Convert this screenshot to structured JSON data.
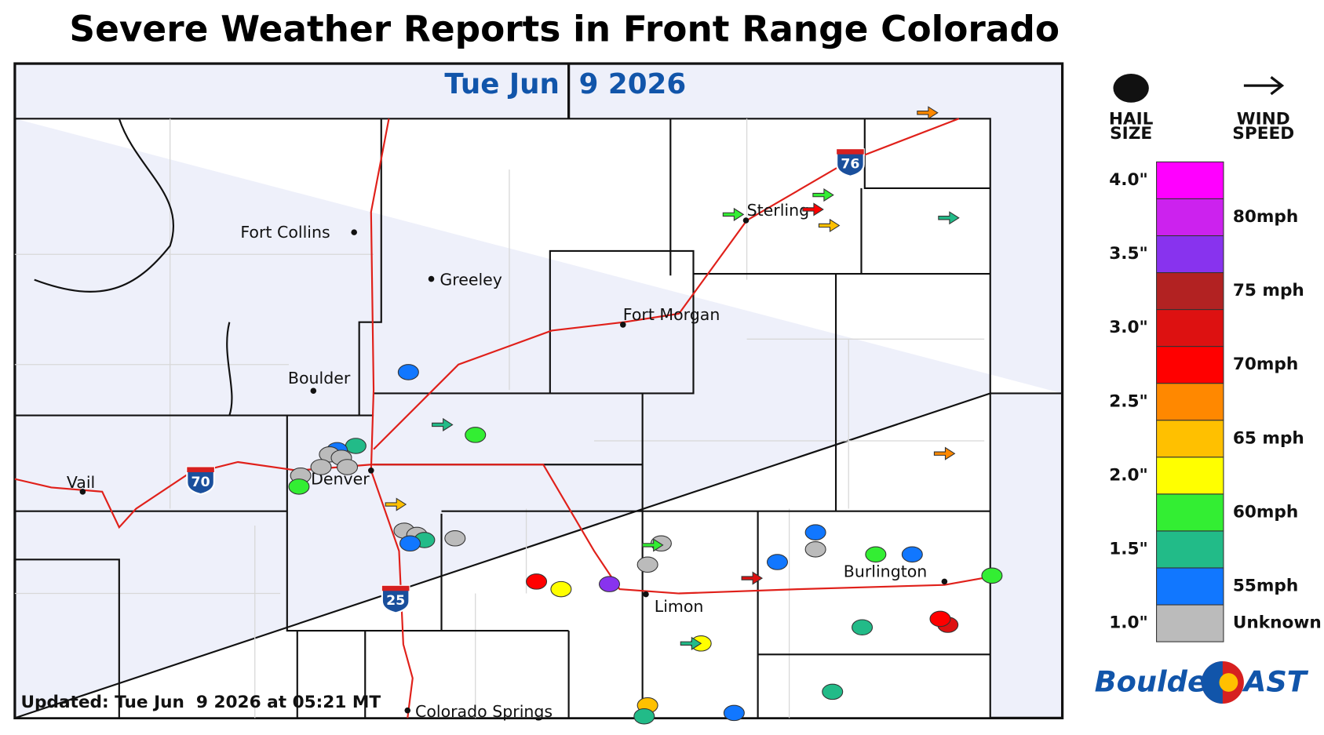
{
  "title": "Severe Weather Reports in Front Range Colorado",
  "map": {
    "date": "Tue Jun  9 2026",
    "updated": "Updated: Tue Jun  9 2026 at 05:21 MT",
    "cities": [
      "Fort Collins",
      "Greeley",
      "Fort Morgan",
      "Sterling",
      "Boulder",
      "Denver",
      "Vail",
      "Limon",
      "Burlington",
      "Colorado Springs"
    ],
    "highways": [
      "76",
      "70",
      "25"
    ]
  },
  "legend": {
    "hail_heading": [
      "HAIL",
      "SIZE"
    ],
    "wind_heading": [
      "WIND",
      "SPEED"
    ],
    "colors": [
      "#ff00ff",
      "#cc22ee",
      "#8833ee",
      "#b22222",
      "#dd1111",
      "#ff0000",
      "#ff8800",
      "#ffc000",
      "#ffff00",
      "#33ee33",
      "#22bb88",
      "#1177ff",
      "#bbbbbb"
    ],
    "hail_labels": [
      "4.0\"",
      "3.5\"",
      "3.0\"",
      "2.5\"",
      "2.0\"",
      "1.5\"",
      "1.0\""
    ],
    "wind_labels": [
      "80mph",
      "75 mph",
      "70mph",
      "65 mph",
      "60mph",
      "55mph",
      "Unknown"
    ]
  },
  "brand": {
    "left": "Boulder",
    "right": "AST"
  }
}
